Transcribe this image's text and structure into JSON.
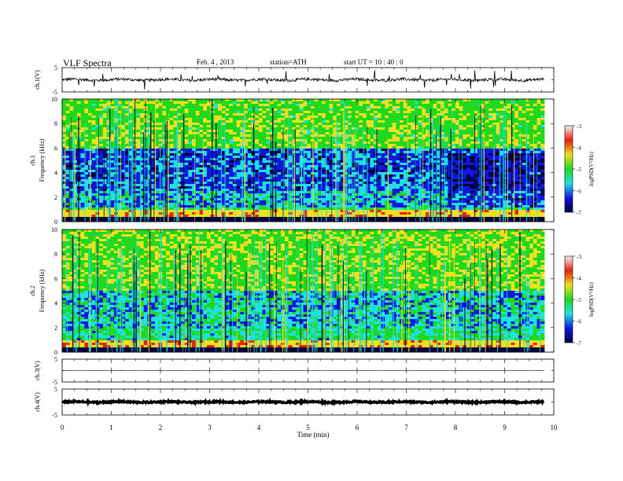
{
  "header": {
    "title": "VLF  Spectra",
    "date": "Feb. 4  , 2013",
    "station": "station=ATH",
    "start": "start  UT  =   10 : 40 : 0"
  },
  "colorbar": {
    "label": "logPSD(V²/Hz)",
    "ticks": [
      "-3",
      "-4",
      "-5",
      "-6",
      "-7"
    ],
    "colors": [
      "#f2f2f2",
      "#e82010",
      "#f0e020",
      "#20d820",
      "#20e0e0",
      "#1018e0",
      "#000040"
    ]
  },
  "chart_data": [
    {
      "type": "line",
      "panel": "ch1-waveform",
      "ylabel": "ch.1(V)",
      "ylim": [
        -5,
        5
      ],
      "y_ticks": [
        "5",
        "-5"
      ],
      "trace_level_v": 0.0,
      "trace_amplitude_v": 1.0
    },
    {
      "type": "heatmap",
      "panel": "ch1-spectrogram",
      "ylabel_top": "ch.1",
      "ylabel": "Frequency  (kHz)",
      "ylim": [
        0,
        10
      ],
      "y_ticks": [
        "0",
        "2",
        "4",
        "6",
        "8",
        "10"
      ],
      "data_extent_min": 9.8,
      "clim": [
        -7,
        -3
      ]
    },
    {
      "type": "heatmap",
      "panel": "ch2-spectrogram",
      "ylabel_top": "ch.2",
      "ylabel": "Frequency  (kHz)",
      "ylim": [
        0,
        10
      ],
      "y_ticks": [
        "0",
        "2",
        "4",
        "6",
        "8",
        "10"
      ],
      "data_extent_min": 9.8,
      "clim": [
        -7,
        -3
      ]
    },
    {
      "type": "line",
      "panel": "ch3-waveform",
      "ylabel": "ch.3(V)",
      "ylim": [
        -5,
        5
      ],
      "y_ticks": [
        "5",
        "-5"
      ],
      "trace_level_v": 0.0,
      "trace_amplitude_v": 0.1
    },
    {
      "type": "line",
      "panel": "ch4-waveform",
      "ylabel": "ch.4(V)",
      "ylim": [
        -5,
        5
      ],
      "y_ticks": [
        "5",
        "-5"
      ],
      "trace_level_v": 0.0,
      "trace_amplitude_v": 0.5
    }
  ],
  "x_axis": {
    "label": "Time  (min)",
    "xlim": [
      0,
      10
    ],
    "ticks": [
      "0",
      "1",
      "2",
      "3",
      "4",
      "5",
      "6",
      "7",
      "8",
      "9",
      "10"
    ]
  }
}
